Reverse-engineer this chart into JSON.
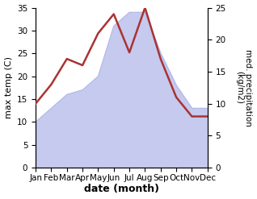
{
  "months": [
    "Jan",
    "Feb",
    "Mar",
    "Apr",
    "May",
    "Jun",
    "Jul",
    "Aug",
    "Sep",
    "Oct",
    "Nov",
    "Dec"
  ],
  "max_temp": [
    10,
    13,
    16,
    17,
    20,
    31,
    34,
    34,
    25,
    18,
    13,
    13
  ],
  "precipitation": [
    10,
    13,
    17,
    16,
    21,
    24,
    18,
    25,
    17,
    11,
    8,
    8
  ],
  "temp_fill_color": "#c5caee",
  "temp_edge_color": "#b0b8e8",
  "precip_color": "#aa3333",
  "xlabel": "date (month)",
  "ylabel_left": "max temp (C)",
  "ylabel_right": "med. precipitation\n(kg/m2)",
  "ylim_left": [
    0,
    35
  ],
  "ylim_right": [
    0,
    25
  ],
  "yticks_left": [
    0,
    5,
    10,
    15,
    20,
    25,
    30,
    35
  ],
  "yticks_right": [
    0,
    5,
    10,
    15,
    20,
    25
  ],
  "background_color": "#ffffff",
  "label_fontsize": 8,
  "tick_fontsize": 7.5,
  "xlabel_fontsize": 9
}
